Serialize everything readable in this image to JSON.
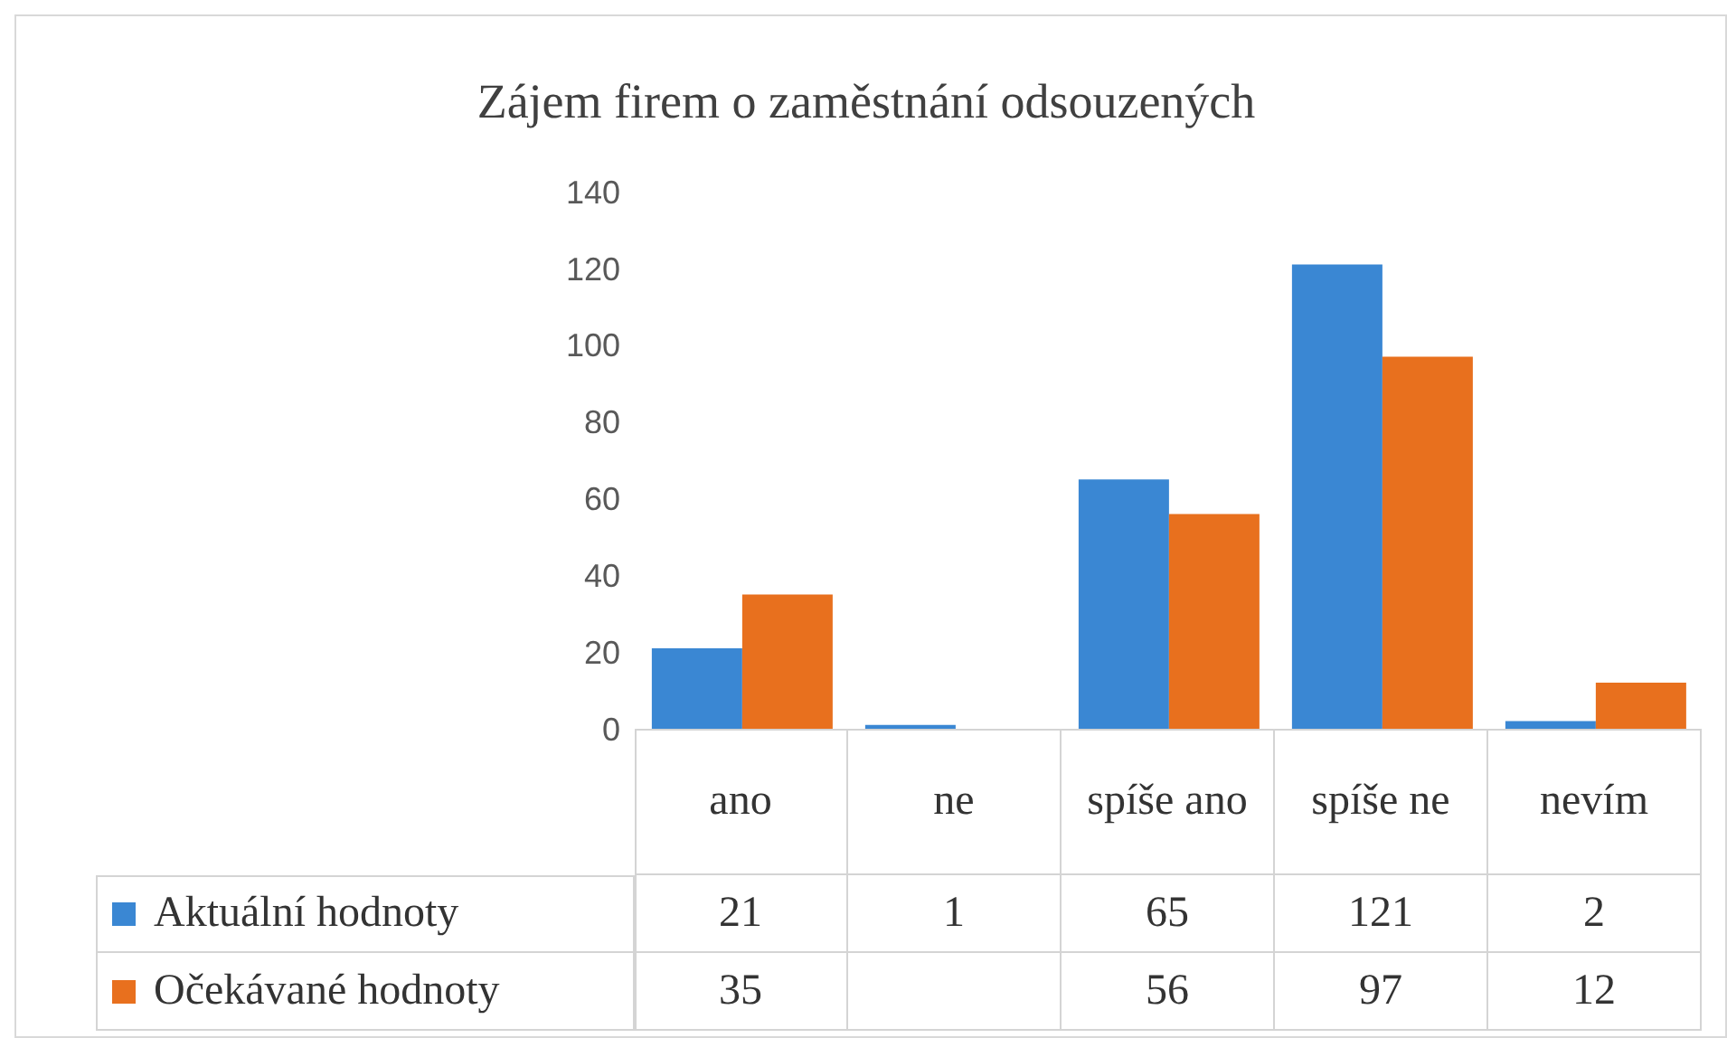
{
  "chart_data": {
    "type": "bar",
    "title": "Zájem firem o zaměstnání odsouzených",
    "categories": [
      "ano",
      "ne",
      "spíše ano",
      "spíše ne",
      "nevím"
    ],
    "series": [
      {
        "name": "Aktuální hodnoty",
        "color": "#3a87d3",
        "values": [
          21,
          1,
          65,
          121,
          2
        ]
      },
      {
        "name": "Očekávané hodnoty",
        "color": "#e8701e",
        "values": [
          35,
          null,
          56,
          97,
          12
        ]
      }
    ],
    "ylim": [
      0,
      140
    ],
    "yticks": [
      0,
      20,
      40,
      60,
      80,
      100,
      120,
      140
    ],
    "legend": "bottom",
    "data_labels": true
  }
}
